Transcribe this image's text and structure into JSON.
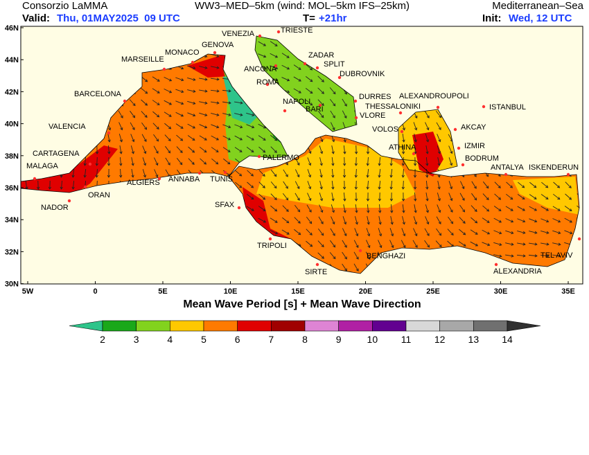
{
  "header": {
    "org": "Consorzio LaMMA",
    "model": "WW3–MED–5km (wind: MOL–5km IFS–25km)",
    "domain": "Mediterranean–Sea",
    "valid_label": "Valid:",
    "valid": "Thu, 01MAY2025  09 UTC",
    "step_label": "T=",
    "step": "+21hr",
    "init_label": "Init:",
    "init": "Wed, 12 UTC"
  },
  "map": {
    "title": "Mean Wave Period [s] + Mean Wave Direction",
    "lat_labels": [
      "46N",
      "44N",
      "42N",
      "40N",
      "38N",
      "36N",
      "34N",
      "32N",
      "30N"
    ],
    "lon_labels": [
      "5W",
      "0",
      "5E",
      "10E",
      "15E",
      "20E",
      "25E",
      "30E",
      "35E"
    ],
    "cities": [
      "VENEZIA",
      "TRIESTE",
      "GENOVA",
      "MONACO",
      "MARSEILLE",
      "ZADAR",
      "SPLIT",
      "ANCONA",
      "DUBROVNIK",
      "ROMA",
      "BARCELONA",
      "DURRES",
      "ALEXANDROUPOLI",
      "NAPOLI",
      "BARI",
      "THESSALONIKI",
      "ISTANBUL",
      "VLORE",
      "VALENCIA",
      "VOLOS",
      "AKCAY",
      "ATHINA",
      "IZMIR",
      "CARTAGENA",
      "PALERMO",
      "BODRUM",
      "MALAGA",
      "ANTALYA",
      "ISKENDERUN",
      "ALGIERS",
      "ANNABA",
      "TUNIS",
      "ORAN",
      "SFAX",
      "NADOR",
      "TRIPOLI",
      "TEL AVIV",
      "BENGHAZI",
      "SIRTE",
      "ALEXANDRIA"
    ]
  },
  "legend": {
    "values": [
      2,
      3,
      4,
      5,
      6,
      7,
      8,
      9,
      10,
      11,
      12,
      13,
      14
    ],
    "colors": [
      "#2ec48a",
      "#1aa81a",
      "#82d21e",
      "#ffc800",
      "#ff7a00",
      "#e00000",
      "#a00000",
      "#de84d4",
      "#b020a4",
      "#620090",
      "#d8d8d8",
      "#a8a8a8",
      "#707070",
      "#303030"
    ]
  }
}
